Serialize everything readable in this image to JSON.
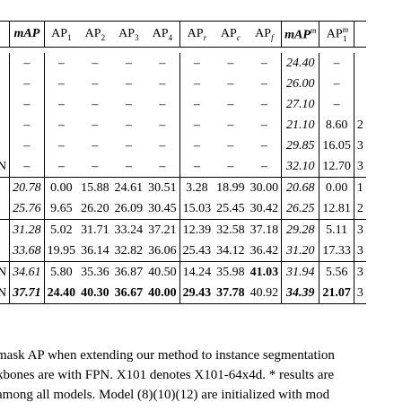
{
  "table": {
    "headers": {
      "mAP": "mAP",
      "ap1": "AP",
      "ap1_sub": "1",
      "ap2": "AP",
      "ap2_sub": "2",
      "ap3": "AP",
      "ap3_sub": "3",
      "ap4": "AP",
      "ap4_sub": "4",
      "apr": "AP",
      "apr_sub": "r",
      "apc": "AP",
      "apc_sub": "c",
      "apf": "AP",
      "apf_sub": "f",
      "mapm": "mAP",
      "mapm_sup": "m",
      "ap1m": "AP",
      "ap1m_sub": "1",
      "ap1m_sup": "m"
    },
    "rows": [
      {
        "label": "",
        "map": "–",
        "ap1": "–",
        "ap2": "–",
        "ap3": "–",
        "ap4": "–",
        "apr": "–",
        "apc": "–",
        "apf": "–",
        "mapm": "24.40",
        "ap1m": "–",
        "tail": ""
      },
      {
        "label": "",
        "map": "–",
        "ap1": "–",
        "ap2": "–",
        "ap3": "–",
        "ap4": "–",
        "apr": "–",
        "apc": "–",
        "apf": "–",
        "mapm": "26.00",
        "ap1m": "–",
        "tail": ""
      },
      {
        "label": "",
        "map": "–",
        "ap1": "–",
        "ap2": "–",
        "ap3": "–",
        "ap4": "–",
        "apr": "–",
        "apc": "–",
        "apf": "–",
        "mapm": "27.10",
        "ap1m": "–",
        "tail": ""
      },
      {
        "label": "",
        "map": "–",
        "ap1": "–",
        "ap2": "–",
        "ap3": "–",
        "ap4": "–",
        "apr": "–",
        "apc": "–",
        "apf": "–",
        "mapm": "21.10",
        "ap1m": "8.60",
        "tail": "2"
      },
      {
        "label": "",
        "map": "–",
        "ap1": "–",
        "ap2": "–",
        "ap3": "–",
        "ap4": "–",
        "apr": "–",
        "apc": "–",
        "apf": "–",
        "mapm": "29.85",
        "ap1m": "16.05",
        "tail": "3"
      },
      {
        "label": "N",
        "map": "–",
        "ap1": "–",
        "ap2": "–",
        "ap3": "–",
        "ap4": "–",
        "apr": "–",
        "apc": "–",
        "apf": "–",
        "mapm": "32.10",
        "ap1m": "12.70",
        "tail": "3"
      },
      {
        "label": "",
        "map": "20.78",
        "ap1": "0.00",
        "ap2": "15.88",
        "ap3": "24.61",
        "ap4": "30.51",
        "apr": "3.28",
        "apc": "18.99",
        "apf": "30.00",
        "mapm": "20.68",
        "ap1m": "0.00",
        "tail": "1"
      },
      {
        "label": "",
        "map": "25.76",
        "ap1": "9.65",
        "ap2": "26.20",
        "ap3": "26.09",
        "ap4": "30.45",
        "apr": "15.03",
        "apc": "25.45",
        "apf": "30.42",
        "mapm": "26.25",
        "ap1m": "12.81",
        "tail": "2"
      },
      {
        "label": "",
        "map": "31.28",
        "ap1": "5.02",
        "ap2": "31.71",
        "ap3": "33.24",
        "ap4": "37.21",
        "apr": "12.39",
        "apc": "32.58",
        "apf": "37.18",
        "mapm": "29.28",
        "ap1m": "5.11",
        "tail": "3"
      },
      {
        "label": "",
        "map": "33.68",
        "ap1": "19.95",
        "ap2": "36.14",
        "ap3": "32.82",
        "ap4": "36.06",
        "apr": "25.43",
        "apc": "34.12",
        "apf": "36.42",
        "mapm": "31.20",
        "ap1m": "17.33",
        "tail": "3"
      },
      {
        "label": "N",
        "map": "34.61",
        "ap1": "5.80",
        "ap2": "35.36",
        "ap3": "36.87",
        "ap4": "40.50",
        "apr": "14.24",
        "apc": "35.98",
        "apf": "41.03",
        "mapm": "31.94",
        "ap1m": "5.56",
        "tail": "3"
      },
      {
        "label": "N",
        "map": "37.71",
        "ap1": "24.40",
        "ap2": "40.30",
        "ap3": "36.67",
        "ap4": "40.00",
        "apr": "29.43",
        "apc": "37.78",
        "apf": "40.92",
        "mapm": "34.39",
        "ap1m": "21.07",
        "tail": "3"
      }
    ]
  },
  "caption": {
    "line1": "mask AP when extending our method to instance segmentation",
    "line2": "kbones are with FPN. X101 denotes X101-64x4d. * results are",
    "line3": "among all models. Model (8)(10)(12) are initialized with mod"
  }
}
